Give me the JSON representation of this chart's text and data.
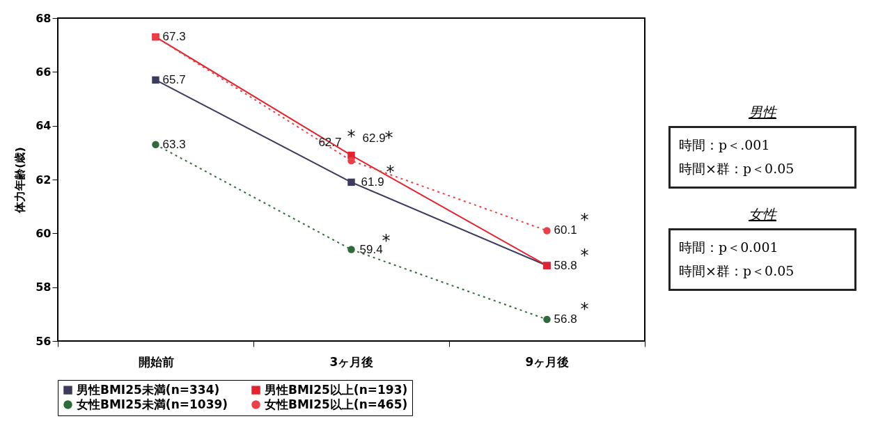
{
  "chart_data": {
    "type": "line",
    "ylabel": "体力年齢(歳)",
    "categories": [
      "開始前",
      "3ヶ月後",
      "9ヶ月後"
    ],
    "series": [
      {
        "name": "男性BMI25未満(n=334)",
        "color": "#3b3b5e",
        "marker": "square",
        "line_style": "solid",
        "values": [
          65.7,
          61.9,
          58.8
        ],
        "value_labels": [
          "65.7",
          "61.9",
          "58.8"
        ]
      },
      {
        "name": "男性BMI25以上(n=193)",
        "color": "#e5232e",
        "marker": "square",
        "line_style": "solid",
        "values": [
          67.3,
          62.9,
          58.8
        ],
        "value_labels": [
          "67.3",
          "62.9",
          null
        ]
      },
      {
        "name": "女性BMI25未満(n=1039)",
        "color": "#2f6a3a",
        "marker": "circle",
        "line_style": "dotted",
        "values": [
          63.3,
          59.4,
          56.8
        ],
        "value_labels": [
          "63.3",
          "59.4",
          "56.8"
        ]
      },
      {
        "name": "女性BMI25以上(n=465)",
        "color": "#ec4048",
        "marker": "circle",
        "line_style": "dotted",
        "values": [
          67.3,
          62.7,
          60.1
        ],
        "value_labels": [
          null,
          "62.7",
          "60.1"
        ]
      }
    ],
    "ylim": [
      56,
      68
    ],
    "yticks": [
      56,
      58,
      60,
      62,
      64,
      66,
      68
    ],
    "grid": false,
    "legend": "bottom",
    "annotations": [
      {
        "text": "*",
        "x": "3ヶ月後",
        "y": 62.7
      },
      {
        "text": "*",
        "x": "3ヶ月後",
        "y": 62.9
      },
      {
        "text": "*",
        "x": "3ヶ月後",
        "y": 61.9
      },
      {
        "text": "*",
        "x": "3ヶ月後",
        "y": 59.4
      },
      {
        "text": "*",
        "x": "9ヶ月後",
        "y": 60.1
      },
      {
        "text": "*",
        "x": "9ヶ月後",
        "y": 58.8
      },
      {
        "text": "*",
        "x": "9ヶ月後",
        "y": 56.8
      },
      "男性",
      "時間：p＜.001",
      "時間×群：p＜0.05",
      "女性",
      "時間：p＜0.001",
      "時間×群：p＜0.05"
    ]
  }
}
